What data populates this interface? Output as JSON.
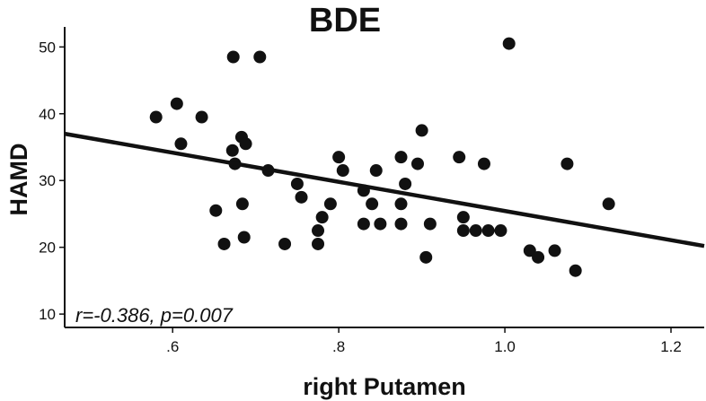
{
  "chart_data": {
    "type": "scatter",
    "title": "BDE",
    "xlabel": "right Putamen",
    "ylabel": "HAMD",
    "xlim": [
      0.47,
      1.24
    ],
    "ylim": [
      8,
      53
    ],
    "x_ticks": [
      ".6",
      ".8",
      "1.0",
      "1.2"
    ],
    "x_tick_values": [
      0.6,
      0.8,
      1.0,
      1.2
    ],
    "y_ticks": [
      "10",
      "20",
      "30",
      "40",
      "50"
    ],
    "y_tick_values": [
      10,
      20,
      30,
      40,
      50
    ],
    "grid": false,
    "annotation": "r=-0.386, p=0.007",
    "regression_line": {
      "x": [
        0.47,
        1.24
      ],
      "y": [
        37,
        20.2
      ]
    },
    "points": [
      {
        "x": 0.58,
        "y": 39.5
      },
      {
        "x": 0.605,
        "y": 41.5
      },
      {
        "x": 0.61,
        "y": 35.5
      },
      {
        "x": 0.635,
        "y": 39.5
      },
      {
        "x": 0.652,
        "y": 25.5
      },
      {
        "x": 0.662,
        "y": 20.5
      },
      {
        "x": 0.672,
        "y": 34.5
      },
      {
        "x": 0.675,
        "y": 32.5
      },
      {
        "x": 0.673,
        "y": 48.5
      },
      {
        "x": 0.683,
        "y": 36.5
      },
      {
        "x": 0.688,
        "y": 35.5
      },
      {
        "x": 0.684,
        "y": 26.5
      },
      {
        "x": 0.686,
        "y": 21.5
      },
      {
        "x": 0.705,
        "y": 48.5
      },
      {
        "x": 0.715,
        "y": 31.5
      },
      {
        "x": 0.735,
        "y": 20.5
      },
      {
        "x": 0.75,
        "y": 29.5
      },
      {
        "x": 0.755,
        "y": 27.5
      },
      {
        "x": 0.775,
        "y": 22.5
      },
      {
        "x": 0.775,
        "y": 20.5
      },
      {
        "x": 0.78,
        "y": 24.5
      },
      {
        "x": 0.79,
        "y": 26.5
      },
      {
        "x": 0.8,
        "y": 33.5
      },
      {
        "x": 0.805,
        "y": 31.5
      },
      {
        "x": 0.83,
        "y": 23.5
      },
      {
        "x": 0.83,
        "y": 28.5
      },
      {
        "x": 0.84,
        "y": 26.5
      },
      {
        "x": 0.845,
        "y": 31.5
      },
      {
        "x": 0.85,
        "y": 23.5
      },
      {
        "x": 0.875,
        "y": 33.5
      },
      {
        "x": 0.875,
        "y": 26.5
      },
      {
        "x": 0.875,
        "y": 23.5
      },
      {
        "x": 0.88,
        "y": 29.5
      },
      {
        "x": 0.895,
        "y": 32.5
      },
      {
        "x": 0.9,
        "y": 37.5
      },
      {
        "x": 0.905,
        "y": 18.5
      },
      {
        "x": 0.91,
        "y": 23.5
      },
      {
        "x": 0.945,
        "y": 33.5
      },
      {
        "x": 0.95,
        "y": 24.5
      },
      {
        "x": 0.95,
        "y": 22.5
      },
      {
        "x": 0.965,
        "y": 22.5
      },
      {
        "x": 0.975,
        "y": 32.5
      },
      {
        "x": 0.98,
        "y": 22.5
      },
      {
        "x": 0.995,
        "y": 22.5
      },
      {
        "x": 1.005,
        "y": 50.5
      },
      {
        "x": 1.03,
        "y": 19.5
      },
      {
        "x": 1.04,
        "y": 18.5
      },
      {
        "x": 1.06,
        "y": 19.5
      },
      {
        "x": 1.075,
        "y": 32.5
      },
      {
        "x": 1.085,
        "y": 16.5
      },
      {
        "x": 1.125,
        "y": 26.5
      }
    ]
  }
}
